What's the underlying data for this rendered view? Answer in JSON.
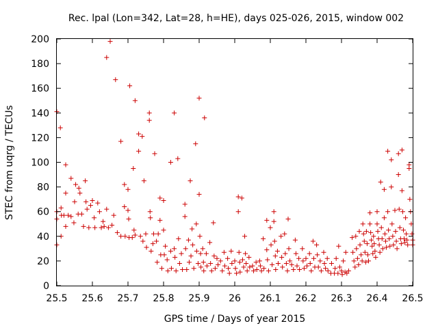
{
  "chart_data": {
    "type": "scatter",
    "title": "Rec. lpal (Lon=342, Lat=28, h=HE), days 025-026, 2015, window 002",
    "xlabel": "GPS time / Days of year 2015",
    "ylabel": "STEC from uqrg / TECUs",
    "xlim": [
      25.5,
      26.5
    ],
    "ylim": [
      0,
      200
    ],
    "xticks": [
      "25.5",
      "25.6",
      "25.7",
      "25.8",
      "25.9",
      "26",
      "26.1",
      "26.2",
      "26.3",
      "26.4",
      "26.5"
    ],
    "yticks": [
      "0",
      "20",
      "40",
      "60",
      "80",
      "100",
      "120",
      "140",
      "160",
      "180",
      "200"
    ],
    "grid": false,
    "marker": "+",
    "color": "#cc0000",
    "points": [
      [
        25.5,
        141
      ],
      [
        25.5,
        60
      ],
      [
        25.5,
        54
      ],
      [
        25.5,
        33
      ],
      [
        25.51,
        128
      ],
      [
        25.512,
        63
      ],
      [
        25.512,
        40
      ],
      [
        25.513,
        57
      ],
      [
        25.52,
        57
      ],
      [
        25.525,
        98
      ],
      [
        25.525,
        75
      ],
      [
        25.525,
        48
      ],
      [
        25.532,
        57
      ],
      [
        25.54,
        87
      ],
      [
        25.54,
        56
      ],
      [
        25.548,
        51
      ],
      [
        25.55,
        68
      ],
      [
        25.553,
        82
      ],
      [
        25.56,
        58
      ],
      [
        25.562,
        79
      ],
      [
        25.565,
        75
      ],
      [
        25.57,
        58
      ],
      [
        25.575,
        48
      ],
      [
        25.58,
        85
      ],
      [
        25.582,
        68
      ],
      [
        25.585,
        62
      ],
      [
        25.59,
        47
      ],
      [
        25.595,
        65
      ],
      [
        25.6,
        69
      ],
      [
        25.605,
        55
      ],
      [
        25.607,
        47
      ],
      [
        25.615,
        67
      ],
      [
        25.62,
        60
      ],
      [
        25.625,
        47
      ],
      [
        25.63,
        52
      ],
      [
        25.633,
        48
      ],
      [
        25.64,
        185
      ],
      [
        25.64,
        62
      ],
      [
        25.645,
        47
      ],
      [
        25.65,
        198
      ],
      [
        25.655,
        49
      ],
      [
        25.66,
        57
      ],
      [
        25.665,
        167
      ],
      [
        25.67,
        43
      ],
      [
        25.68,
        117
      ],
      [
        25.68,
        40
      ],
      [
        25.69,
        82
      ],
      [
        25.69,
        64
      ],
      [
        25.692,
        40
      ],
      [
        25.7,
        78
      ],
      [
        25.7,
        61
      ],
      [
        25.702,
        54
      ],
      [
        25.703,
        39
      ],
      [
        25.705,
        162
      ],
      [
        25.712,
        39
      ],
      [
        25.715,
        95
      ],
      [
        25.717,
        45
      ],
      [
        25.72,
        150
      ],
      [
        25.72,
        41
      ],
      [
        25.73,
        123
      ],
      [
        25.73,
        109
      ],
      [
        25.735,
        40
      ],
      [
        25.74,
        121
      ],
      [
        25.742,
        36
      ],
      [
        25.745,
        85
      ],
      [
        25.75,
        42
      ],
      [
        25.752,
        31
      ],
      [
        25.76,
        140
      ],
      [
        25.76,
        134
      ],
      [
        25.762,
        60
      ],
      [
        25.763,
        55
      ],
      [
        25.765,
        28
      ],
      [
        25.77,
        34
      ],
      [
        25.772,
        42
      ],
      [
        25.775,
        107
      ],
      [
        25.78,
        36
      ],
      [
        25.782,
        19
      ],
      [
        25.785,
        42
      ],
      [
        25.79,
        71
      ],
      [
        25.79,
        53
      ],
      [
        25.792,
        25
      ],
      [
        25.795,
        14
      ],
      [
        25.8,
        69
      ],
      [
        25.8,
        45
      ],
      [
        25.802,
        25
      ],
      [
        25.805,
        32
      ],
      [
        25.81,
        21
      ],
      [
        25.812,
        12
      ],
      [
        25.82,
        100
      ],
      [
        25.82,
        28
      ],
      [
        25.822,
        14
      ],
      [
        25.83,
        140
      ],
      [
        25.83,
        30
      ],
      [
        25.832,
        23
      ],
      [
        25.835,
        12
      ],
      [
        25.84,
        103
      ],
      [
        25.842,
        38
      ],
      [
        25.845,
        18
      ],
      [
        25.85,
        26
      ],
      [
        25.853,
        13
      ],
      [
        25.86,
        66
      ],
      [
        25.86,
        56
      ],
      [
        25.862,
        30
      ],
      [
        25.865,
        13
      ],
      [
        25.87,
        37
      ],
      [
        25.872,
        19
      ],
      [
        25.875,
        85
      ],
      [
        25.877,
        24
      ],
      [
        25.88,
        46
      ],
      [
        25.882,
        33
      ],
      [
        25.885,
        14
      ],
      [
        25.89,
        115
      ],
      [
        25.892,
        50
      ],
      [
        25.893,
        28
      ],
      [
        25.897,
        18
      ],
      [
        25.9,
        152
      ],
      [
        25.9,
        74
      ],
      [
        25.902,
        40
      ],
      [
        25.904,
        26
      ],
      [
        25.905,
        15
      ],
      [
        25.91,
        30
      ],
      [
        25.912,
        19
      ],
      [
        25.913,
        12
      ],
      [
        25.915,
        136
      ],
      [
        25.92,
        26
      ],
      [
        25.922,
        16
      ],
      [
        25.93,
        35
      ],
      [
        25.932,
        18
      ],
      [
        25.935,
        12
      ],
      [
        25.94,
        51
      ],
      [
        25.942,
        24
      ],
      [
        25.945,
        14
      ],
      [
        25.95,
        22
      ],
      [
        25.953,
        17
      ],
      [
        25.96,
        20
      ],
      [
        25.965,
        12
      ],
      [
        25.97,
        27
      ],
      [
        25.972,
        16
      ],
      [
        25.98,
        22
      ],
      [
        25.982,
        14
      ],
      [
        25.985,
        10
      ],
      [
        25.99,
        28
      ],
      [
        25.992,
        18
      ],
      [
        26.0,
        20
      ],
      [
        26.002,
        14
      ],
      [
        26.005,
        10
      ],
      [
        26.01,
        72
      ],
      [
        26.01,
        60
      ],
      [
        26.012,
        27
      ],
      [
        26.014,
        19
      ],
      [
        26.015,
        11
      ],
      [
        26.02,
        71
      ],
      [
        26.022,
        21
      ],
      [
        26.025,
        15
      ],
      [
        26.028,
        40
      ],
      [
        26.03,
        26
      ],
      [
        26.032,
        18
      ],
      [
        26.035,
        12
      ],
      [
        26.04,
        23
      ],
      [
        26.042,
        15
      ],
      [
        26.05,
        16
      ],
      [
        26.053,
        12
      ],
      [
        26.06,
        19
      ],
      [
        26.062,
        13
      ],
      [
        26.07,
        20
      ],
      [
        26.072,
        16
      ],
      [
        26.075,
        12
      ],
      [
        26.08,
        38
      ],
      [
        26.082,
        14
      ],
      [
        26.09,
        53
      ],
      [
        26.09,
        29
      ],
      [
        26.092,
        21
      ],
      [
        26.095,
        12
      ],
      [
        26.1,
        47
      ],
      [
        26.102,
        33
      ],
      [
        26.105,
        17
      ],
      [
        26.11,
        60
      ],
      [
        26.11,
        52
      ],
      [
        26.112,
        36
      ],
      [
        26.114,
        24
      ],
      [
        26.115,
        13
      ],
      [
        26.12,
        28
      ],
      [
        26.122,
        18
      ],
      [
        26.13,
        40
      ],
      [
        26.132,
        23
      ],
      [
        26.134,
        15
      ],
      [
        26.14,
        42
      ],
      [
        26.142,
        26
      ],
      [
        26.145,
        18
      ],
      [
        26.148,
        12
      ],
      [
        26.15,
        54
      ],
      [
        26.152,
        30
      ],
      [
        26.155,
        20
      ],
      [
        26.16,
        17
      ],
      [
        26.165,
        13
      ],
      [
        26.17,
        37
      ],
      [
        26.172,
        26
      ],
      [
        26.175,
        16
      ],
      [
        26.18,
        22
      ],
      [
        26.182,
        13
      ],
      [
        26.19,
        30
      ],
      [
        26.192,
        20
      ],
      [
        26.195,
        14
      ],
      [
        26.2,
        22
      ],
      [
        26.203,
        16
      ],
      [
        26.21,
        26
      ],
      [
        26.212,
        18
      ],
      [
        26.215,
        12
      ],
      [
        26.22,
        36
      ],
      [
        26.222,
        22
      ],
      [
        26.225,
        15
      ],
      [
        26.23,
        33
      ],
      [
        26.232,
        25
      ],
      [
        26.235,
        15
      ],
      [
        26.24,
        20
      ],
      [
        26.243,
        12
      ],
      [
        26.25,
        27
      ],
      [
        26.252,
        18
      ],
      [
        26.255,
        14
      ],
      [
        26.26,
        22
      ],
      [
        26.262,
        12
      ],
      [
        26.27,
        10
      ],
      [
        26.272,
        18
      ],
      [
        26.28,
        10
      ],
      [
        26.282,
        14
      ],
      [
        26.285,
        22
      ],
      [
        26.29,
        10
      ],
      [
        26.292,
        32
      ],
      [
        26.295,
        15
      ],
      [
        26.3,
        12
      ],
      [
        26.302,
        9
      ],
      [
        26.305,
        20
      ],
      [
        26.31,
        11
      ],
      [
        26.312,
        27
      ],
      [
        26.315,
        10
      ],
      [
        26.32,
        12
      ],
      [
        26.33,
        39
      ],
      [
        26.332,
        27
      ],
      [
        26.335,
        20
      ],
      [
        26.338,
        15
      ],
      [
        26.34,
        40
      ],
      [
        26.342,
        30
      ],
      [
        26.345,
        22
      ],
      [
        26.348,
        17
      ],
      [
        26.35,
        44
      ],
      [
        26.352,
        33
      ],
      [
        26.355,
        25
      ],
      [
        26.358,
        20
      ],
      [
        26.36,
        50
      ],
      [
        26.362,
        42
      ],
      [
        26.364,
        36
      ],
      [
        26.366,
        27
      ],
      [
        26.368,
        19
      ],
      [
        26.37,
        44
      ],
      [
        26.372,
        34
      ],
      [
        26.374,
        25
      ],
      [
        26.376,
        20
      ],
      [
        26.38,
        59
      ],
      [
        26.38,
        50
      ],
      [
        26.382,
        43
      ],
      [
        26.384,
        37
      ],
      [
        26.386,
        32
      ],
      [
        26.388,
        26
      ],
      [
        26.39,
        40
      ],
      [
        26.392,
        34
      ],
      [
        26.394,
        28
      ],
      [
        26.396,
        23
      ],
      [
        26.4,
        60
      ],
      [
        26.4,
        50
      ],
      [
        26.402,
        44
      ],
      [
        26.404,
        38
      ],
      [
        26.406,
        33
      ],
      [
        26.408,
        27
      ],
      [
        26.41,
        84
      ],
      [
        26.412,
        47
      ],
      [
        26.414,
        38
      ],
      [
        26.416,
        30
      ],
      [
        26.42,
        78
      ],
      [
        26.42,
        55
      ],
      [
        26.422,
        42
      ],
      [
        26.424,
        36
      ],
      [
        26.426,
        31
      ],
      [
        26.43,
        109
      ],
      [
        26.43,
        60
      ],
      [
        26.432,
        45
      ],
      [
        26.434,
        38
      ],
      [
        26.436,
        32
      ],
      [
        26.44,
        102
      ],
      [
        26.44,
        80
      ],
      [
        26.442,
        50
      ],
      [
        26.444,
        40
      ],
      [
        26.446,
        33
      ],
      [
        26.45,
        61
      ],
      [
        26.452,
        44
      ],
      [
        26.454,
        36
      ],
      [
        26.456,
        30
      ],
      [
        26.46,
        107
      ],
      [
        26.46,
        90
      ],
      [
        26.462,
        62
      ],
      [
        26.464,
        47
      ],
      [
        26.466,
        38
      ],
      [
        26.468,
        34
      ],
      [
        26.47,
        110
      ],
      [
        26.47,
        77
      ],
      [
        26.472,
        60
      ],
      [
        26.474,
        45
      ],
      [
        26.476,
        38
      ],
      [
        26.478,
        35
      ],
      [
        26.48,
        55
      ],
      [
        26.482,
        42
      ],
      [
        26.484,
        37
      ],
      [
        26.486,
        33
      ],
      [
        26.49,
        98
      ],
      [
        26.49,
        95
      ],
      [
        26.492,
        70
      ],
      [
        26.494,
        60
      ],
      [
        26.496,
        50
      ],
      [
        26.498,
        42
      ],
      [
        26.5,
        37
      ],
      [
        26.5,
        33
      ]
    ]
  }
}
